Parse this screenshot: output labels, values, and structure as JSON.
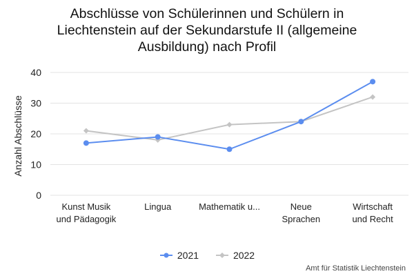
{
  "chart_data": {
    "type": "line",
    "title_lines": [
      "Abschlüsse von Schülerinnen und Schülern in",
      "Liechtenstein auf der Sekundarstufe II (allgemeine",
      "Ausbildung) nach Profil"
    ],
    "ylabel": "Anzahl Abschlüsse",
    "xlabel": "",
    "ylim": [
      0,
      40
    ],
    "yticks": [
      0,
      10,
      20,
      30,
      40
    ],
    "grid": true,
    "legend_position": "bottom",
    "categories": [
      [
        "Kunst Musik",
        "und Pädagogik"
      ],
      [
        "Lingua"
      ],
      [
        "Mathematik u..."
      ],
      [
        "Neue",
        "Sprachen"
      ],
      [
        "Wirtschaft",
        "und Recht"
      ]
    ],
    "series": [
      {
        "name": "2021",
        "color": "#5b8def",
        "marker": "circle",
        "values": [
          17,
          19,
          15,
          24,
          37
        ]
      },
      {
        "name": "2022",
        "color": "#c4c4c4",
        "marker": "diamond",
        "values": [
          21,
          18,
          23,
          24,
          32
        ]
      }
    ]
  },
  "source": "Amt für Statistik Liechtenstein"
}
